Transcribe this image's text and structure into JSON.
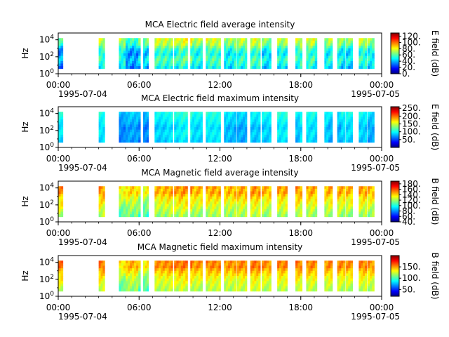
{
  "figure": {
    "x_start_date": "1995-07-04",
    "x_end_date": "1995-07-05",
    "x_tick_labels": [
      "00:00",
      "06:00",
      "12:00",
      "18:00",
      "00:00"
    ],
    "x_tick_hours": [
      0,
      6,
      12,
      18,
      24
    ],
    "colormap": "jet",
    "colormap_stops": [
      "#00007f",
      "#0000ff",
      "#007fff",
      "#00ffff",
      "#7fff7f",
      "#ffff00",
      "#ff7f00",
      "#ff0000",
      "#7f0000"
    ]
  },
  "chart_data": [
    {
      "type": "heatmap",
      "title": "MCA  Electric field average intensity",
      "ylabel": "Hz",
      "y_scale": "log",
      "y_tick_exponents": [
        0,
        2,
        4
      ],
      "ylim_exp": [
        0,
        4.8
      ],
      "xlim_hours": [
        0,
        24
      ],
      "colorbar_label": "E field (dB)",
      "colorbar_range": [
        0,
        130
      ],
      "colorbar_ticks": [
        "0.",
        "20.",
        "40.",
        "60.",
        "80.",
        "100.",
        "120."
      ],
      "colorbar_tick_values": [
        0,
        20,
        40,
        60,
        80,
        100,
        120
      ],
      "data_intervals_hours": [
        [
          0.0,
          0.35
        ],
        [
          3.0,
          3.45
        ],
        [
          4.5,
          5.0
        ],
        [
          5.0,
          6.1
        ],
        [
          6.3,
          6.7
        ],
        [
          7.15,
          8.5
        ],
        [
          8.6,
          9.6
        ],
        [
          9.8,
          10.7
        ],
        [
          10.95,
          12.05
        ],
        [
          12.3,
          13.2
        ],
        [
          13.25,
          14.0
        ],
        [
          14.25,
          15.0
        ],
        [
          15.1,
          15.8
        ],
        [
          16.25,
          17.0
        ],
        [
          17.6,
          18.1
        ],
        [
          18.4,
          19.2
        ],
        [
          19.75,
          20.35
        ],
        [
          20.7,
          21.3
        ],
        [
          21.35,
          21.85
        ],
        [
          22.3,
          22.9
        ],
        [
          22.95,
          23.45
        ]
      ],
      "hourly_level_db": [
        20,
        35,
        45,
        55,
        50,
        20,
        35,
        60,
        55,
        65,
        50,
        60,
        45,
        55,
        60,
        40,
        50,
        55,
        60,
        45,
        50,
        40,
        55,
        45
      ],
      "row_gradient_db": [
        95,
        90,
        85,
        70,
        55,
        50,
        45,
        55,
        60,
        55,
        50,
        40
      ]
    },
    {
      "type": "heatmap",
      "title": "MCA  Electric field maximum intensity",
      "ylabel": "Hz",
      "y_scale": "log",
      "y_tick_exponents": [
        0,
        2,
        4
      ],
      "ylim_exp": [
        0,
        4.8
      ],
      "xlim_hours": [
        0,
        24
      ],
      "colorbar_label": "E field (dB)",
      "colorbar_range": [
        0,
        260
      ],
      "colorbar_ticks": [
        "50.",
        "100.",
        "150.",
        "200.",
        "250."
      ],
      "colorbar_tick_values": [
        50,
        100,
        150,
        200,
        250
      ],
      "data_intervals_hours": [
        [
          0.0,
          0.35
        ],
        [
          3.0,
          3.45
        ],
        [
          4.5,
          5.0
        ],
        [
          5.0,
          6.1
        ],
        [
          6.3,
          6.7
        ],
        [
          7.15,
          8.5
        ],
        [
          8.6,
          9.6
        ],
        [
          9.8,
          10.7
        ],
        [
          10.95,
          12.05
        ],
        [
          12.3,
          13.2
        ],
        [
          13.25,
          14.0
        ],
        [
          14.25,
          15.0
        ],
        [
          15.1,
          15.8
        ],
        [
          16.25,
          17.0
        ],
        [
          17.6,
          18.1
        ],
        [
          18.4,
          19.2
        ],
        [
          19.75,
          20.35
        ],
        [
          20.7,
          21.3
        ],
        [
          21.35,
          21.85
        ],
        [
          22.3,
          22.9
        ],
        [
          22.95,
          23.45
        ]
      ],
      "hourly_level_db": [
        90,
        95,
        85,
        90,
        40,
        55,
        40,
        80,
        90,
        100,
        85,
        95,
        70,
        60,
        75,
        80,
        95,
        70,
        90,
        80,
        65,
        85,
        80,
        60
      ],
      "row_gradient_db": [
        120,
        115,
        110,
        105,
        100,
        90,
        85,
        95,
        100,
        95,
        90,
        85
      ]
    },
    {
      "type": "heatmap",
      "title": "MCA  Magnetic field average intensity",
      "ylabel": "Hz",
      "y_scale": "log",
      "y_tick_exponents": [
        0,
        2,
        4
      ],
      "ylim_exp": [
        0,
        4.8
      ],
      "xlim_hours": [
        0,
        24
      ],
      "colorbar_label": "B field (dB)",
      "colorbar_range": [
        40,
        190
      ],
      "colorbar_ticks": [
        "40.",
        "60.",
        "80.",
        "100.",
        "120.",
        "140.",
        "160.",
        "180."
      ],
      "colorbar_tick_values": [
        40,
        60,
        80,
        100,
        120,
        140,
        160,
        180
      ],
      "data_intervals_hours": [
        [
          0.0,
          0.35
        ],
        [
          3.0,
          3.45
        ],
        [
          4.5,
          5.0
        ],
        [
          5.0,
          6.1
        ],
        [
          6.3,
          6.7
        ],
        [
          7.15,
          8.5
        ],
        [
          8.6,
          9.6
        ],
        [
          9.8,
          10.7
        ],
        [
          10.95,
          12.05
        ],
        [
          12.3,
          13.2
        ],
        [
          13.25,
          14.0
        ],
        [
          14.25,
          15.0
        ],
        [
          15.1,
          15.8
        ],
        [
          16.25,
          17.0
        ],
        [
          17.6,
          18.1
        ],
        [
          18.4,
          19.2
        ],
        [
          19.75,
          20.35
        ],
        [
          20.7,
          21.3
        ],
        [
          21.35,
          21.85
        ],
        [
          22.3,
          22.9
        ],
        [
          22.95,
          23.45
        ]
      ],
      "hourly_level_db": [
        150,
        145,
        140,
        150,
        120,
        130,
        115,
        140,
        145,
        150,
        140,
        145,
        140,
        145,
        150,
        140,
        145,
        150,
        145,
        140,
        145,
        140,
        145,
        140
      ],
      "row_gradient_db": [
        150,
        145,
        150,
        140,
        130,
        125,
        120,
        115,
        110,
        105,
        100,
        95
      ]
    },
    {
      "type": "heatmap",
      "title": "MCA  Magnetic field maximum intensity",
      "ylabel": "Hz",
      "y_scale": "log",
      "y_tick_exponents": [
        0,
        2,
        4
      ],
      "ylim_exp": [
        0,
        4.8
      ],
      "xlim_hours": [
        0,
        24
      ],
      "colorbar_label": "B field (dB)",
      "colorbar_range": [
        20,
        200
      ],
      "colorbar_ticks": [
        "50.",
        "100.",
        "150."
      ],
      "colorbar_tick_values": [
        50,
        100,
        150
      ],
      "data_intervals_hours": [
        [
          0.0,
          0.35
        ],
        [
          3.0,
          3.45
        ],
        [
          4.5,
          5.0
        ],
        [
          5.0,
          6.1
        ],
        [
          6.3,
          6.7
        ],
        [
          7.15,
          8.5
        ],
        [
          8.6,
          9.6
        ],
        [
          9.8,
          10.7
        ],
        [
          10.95,
          12.05
        ],
        [
          12.3,
          13.2
        ],
        [
          13.25,
          14.0
        ],
        [
          14.25,
          15.0
        ],
        [
          15.1,
          15.8
        ],
        [
          16.25,
          17.0
        ],
        [
          17.6,
          18.1
        ],
        [
          18.4,
          19.2
        ],
        [
          19.75,
          20.35
        ],
        [
          20.7,
          21.3
        ],
        [
          21.35,
          21.85
        ],
        [
          22.3,
          22.9
        ],
        [
          22.95,
          23.45
        ]
      ],
      "hourly_level_db": [
        150,
        145,
        140,
        150,
        110,
        130,
        105,
        140,
        145,
        150,
        140,
        145,
        140,
        145,
        150,
        140,
        145,
        150,
        145,
        140,
        145,
        140,
        145,
        140
      ],
      "row_gradient_db": [
        165,
        160,
        165,
        150,
        140,
        130,
        120,
        115,
        110,
        105,
        100,
        95
      ]
    }
  ]
}
